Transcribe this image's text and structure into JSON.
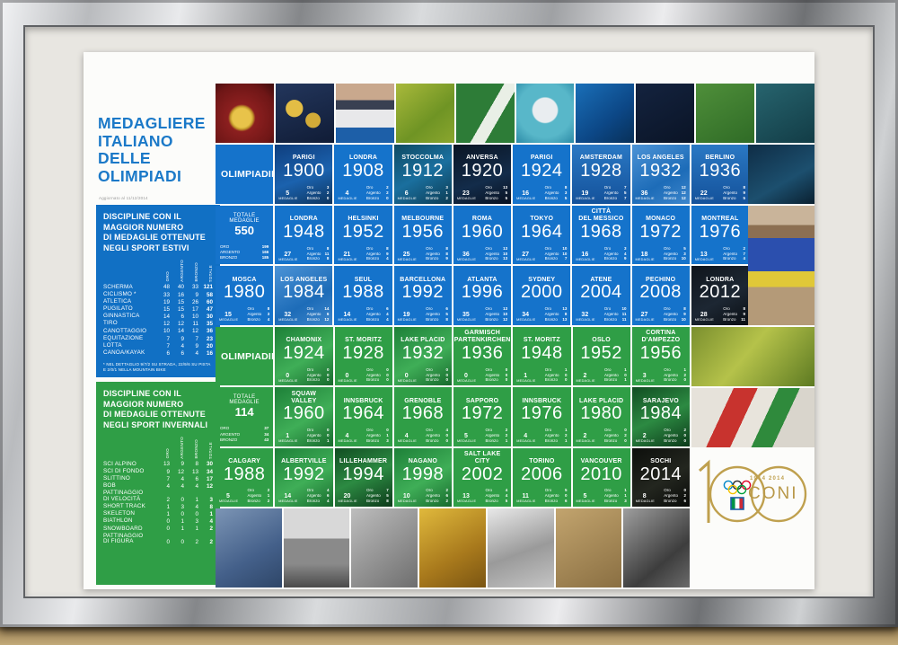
{
  "poster": {
    "title_lines": [
      "MEDAGLIERE",
      "ITALIANO",
      "DELLE",
      "OLIMPIADI"
    ],
    "updated_note": "Aggiornato al 11/12/2014",
    "labels": {
      "oro": "Oro",
      "argento": "Argento",
      "bronzo": "Bronzo",
      "medaglie": "MEDAGLIE",
      "totale_medaglie": "TOTALE MEDAGLIE",
      "col_oro": "ORO",
      "col_argento": "ARGENTO",
      "col_bronzo": "BRONZO",
      "col_totale": "TOTALE"
    },
    "colors": {
      "blue": "#1170c4",
      "green": "#2f9e46",
      "title_blue": "#1b79c8",
      "gold": "#bfa04e"
    },
    "summer_panel": {
      "heading_lines": [
        "DISCIPLINE CON IL",
        "MAGGIOR NUMERO",
        "DI MEDAGLIE OTTENUTE",
        "NEGLI SPORT ESTIVI"
      ],
      "columns": [
        "ORO",
        "ARGENTO",
        "BRONZO",
        "TOTALE"
      ],
      "rows": [
        [
          "SCHERMA",
          48,
          40,
          33,
          121
        ],
        [
          "CICLISMO *",
          33,
          16,
          9,
          58
        ],
        [
          "ATLETICA",
          19,
          15,
          26,
          60
        ],
        [
          "PUGILATO",
          15,
          15,
          17,
          47
        ],
        [
          "GINNASTICA",
          14,
          6,
          10,
          30
        ],
        [
          "TIRO",
          12,
          12,
          11,
          35
        ],
        [
          "CANOTTAGGIO",
          10,
          14,
          12,
          36
        ],
        [
          "EQUITAZIONE",
          7,
          9,
          7,
          23
        ],
        [
          "LOTTA",
          7,
          4,
          9,
          20
        ],
        [
          "CANOA/KAYAK",
          6,
          6,
          4,
          16
        ]
      ],
      "footnote": "* Nel dettaglio 9/7/2 su strada, 22/9/6 su pista e 2/0/1 nella mountain bike"
    },
    "winter_panel": {
      "heading_lines": [
        "DISCIPLINE CON IL",
        "MAGGIOR NUMERO",
        "DI MEDAGLIE OTTENUTE",
        "NEGLI SPORT INVERNALI"
      ],
      "columns": [
        "ORO",
        "ARGENTO",
        "BRONZO",
        "TOTALE"
      ],
      "rows": [
        [
          "SCI ALPINO",
          13,
          9,
          8,
          30
        ],
        [
          "SCI DI FONDO",
          9,
          12,
          13,
          34
        ],
        [
          "SLITTINO",
          7,
          4,
          6,
          17
        ],
        [
          "BOB",
          4,
          4,
          4,
          12
        ],
        [
          [
            "PATTINAGGIO",
            "DI VELOCITÀ"
          ],
          2,
          0,
          1,
          3
        ],
        [
          "SHORT TRACK",
          1,
          3,
          4,
          8
        ],
        [
          "SKELETON",
          1,
          0,
          0,
          1
        ],
        [
          "BIATHLON",
          0,
          1,
          3,
          4
        ],
        [
          "SNOWBOARD",
          0,
          1,
          1,
          2
        ],
        [
          [
            "PATTINAGGIO",
            "DI FIGURA"
          ],
          0,
          0,
          2,
          2
        ]
      ],
      "footnote": ""
    },
    "summer_games": {
      "rows": [
        [
          {
            "head": [
              "OLIMPIADI",
              "ESTIVE"
            ]
          },
          {
            "city": [
              "PARIGI"
            ],
            "year": "1900",
            "count": 5,
            "oro": 3,
            "argento": 2,
            "bronzo": 0,
            "variant": "photo-navy"
          },
          {
            "city": [
              "LONDRA"
            ],
            "year": "1908",
            "count": 4,
            "oro": 2,
            "argento": 2,
            "bronzo": 0
          },
          {
            "city": [
              "STOCCOLMA"
            ],
            "year": "1912",
            "count": 6,
            "oro": 3,
            "argento": 1,
            "bronzo": 2,
            "variant": "photo-teal"
          },
          {
            "city": [
              "ANVERSA"
            ],
            "year": "1920",
            "count": 23,
            "oro": 13,
            "argento": 5,
            "bronzo": 5,
            "variant": "photo-dark"
          },
          {
            "city": [
              "PARIGI"
            ],
            "year": "1924",
            "count": 16,
            "oro": 8,
            "argento": 3,
            "bronzo": 5
          },
          {
            "city": [
              "AMSTERDAM"
            ],
            "year": "1928",
            "count": 19,
            "oro": 7,
            "argento": 5,
            "bronzo": 7,
            "variant": "photo-crowd"
          },
          {
            "city": [
              "LOS ANGELES"
            ],
            "year": "1932",
            "count": 36,
            "oro": 12,
            "argento": 12,
            "bronzo": 12,
            "variant": "photo-light"
          },
          {
            "city": [
              "BERLINO"
            ],
            "year": "1936",
            "count": 22,
            "oro": 8,
            "argento": 9,
            "bronzo": 5,
            "variant": "photo-crowd"
          }
        ],
        [
          {
            "total": true,
            "value": 550,
            "oro": 199,
            "argento": 166,
            "bronzo": 185
          },
          {
            "city": [
              "LONDRA"
            ],
            "year": "1948",
            "count": 27,
            "oro": 8,
            "argento": 11,
            "bronzo": 8
          },
          {
            "city": [
              "HELSINKI"
            ],
            "year": "1952",
            "count": 21,
            "oro": 8,
            "argento": 9,
            "bronzo": 4
          },
          {
            "city": [
              "MELBOURNE"
            ],
            "year": "1956",
            "count": 25,
            "oro": 8,
            "argento": 8,
            "bronzo": 9
          },
          {
            "city": [
              "ROMA"
            ],
            "year": "1960",
            "count": 36,
            "oro": 13,
            "argento": 10,
            "bronzo": 13
          },
          {
            "city": [
              "TOKYO"
            ],
            "year": "1964",
            "count": 27,
            "oro": 10,
            "argento": 10,
            "bronzo": 7
          },
          {
            "city": [
              "CITTÀ",
              "DEL MESSICO"
            ],
            "year": "1968",
            "count": 16,
            "oro": 3,
            "argento": 4,
            "bronzo": 9
          },
          {
            "city": [
              "MONACO"
            ],
            "year": "1972",
            "count": 18,
            "oro": 5,
            "argento": 3,
            "bronzo": 10
          },
          {
            "city": [
              "MONTREAL"
            ],
            "year": "1976",
            "count": 13,
            "oro": 2,
            "argento": 7,
            "bronzo": 4
          }
        ],
        [
          {
            "city": [
              "MOSCA"
            ],
            "year": "1980",
            "count": 15,
            "oro": 8,
            "argento": 3,
            "bronzo": 4
          },
          {
            "city": [
              "LOS ANGELES"
            ],
            "year": "1984",
            "count": 32,
            "oro": 14,
            "argento": 6,
            "bronzo": 12,
            "variant": "photo-light"
          },
          {
            "city": [
              "SEUL"
            ],
            "year": "1988",
            "count": 14,
            "oro": 6,
            "argento": 4,
            "bronzo": 4
          },
          {
            "city": [
              "BARCELLONA"
            ],
            "year": "1992",
            "count": 19,
            "oro": 6,
            "argento": 5,
            "bronzo": 8
          },
          {
            "city": [
              "ATLANTA"
            ],
            "year": "1996",
            "count": 35,
            "oro": 13,
            "argento": 10,
            "bronzo": 12
          },
          {
            "city": [
              "SYDNEY"
            ],
            "year": "2000",
            "count": 34,
            "oro": 13,
            "argento": 8,
            "bronzo": 13
          },
          {
            "city": [
              "ATENE"
            ],
            "year": "2004",
            "count": 32,
            "oro": 10,
            "argento": 11,
            "bronzo": 11
          },
          {
            "city": [
              "PECHINO"
            ],
            "year": "2008",
            "count": 27,
            "oro": 8,
            "argento": 9,
            "bronzo": 10
          },
          {
            "city": [
              "LONDRA"
            ],
            "year": "2012",
            "count": 28,
            "oro": 8,
            "argento": 9,
            "bronzo": 11,
            "variant": "dark"
          }
        ]
      ]
    },
    "winter_games": {
      "rows": [
        [
          {
            "head": [
              "OLIMPIADI",
              "INVERNALI"
            ]
          },
          {
            "city": [
              "CHAMONIX"
            ],
            "year": "1924",
            "count": 0,
            "oro": 0,
            "argento": 0,
            "bronzo": 0,
            "variant": "g-photo"
          },
          {
            "city": [
              "ST. MORITZ"
            ],
            "year": "1928",
            "count": 0,
            "oro": 0,
            "argento": 0,
            "bronzo": 0
          },
          {
            "city": [
              "LAKE PLACID"
            ],
            "year": "1932",
            "count": 0,
            "oro": 0,
            "argento": 0,
            "bronzo": 0,
            "variant": "g-photo"
          },
          {
            "city": [
              "GARMISCH",
              "PARTENKIRCHEN"
            ],
            "year": "1936",
            "count": 0,
            "oro": 0,
            "argento": 0,
            "bronzo": 0
          },
          {
            "city": [
              "ST. MORITZ"
            ],
            "year": "1948",
            "count": 1,
            "oro": 1,
            "argento": 0,
            "bronzo": 0
          },
          {
            "city": [
              "OSLO"
            ],
            "year": "1952",
            "count": 2,
            "oro": 1,
            "argento": 0,
            "bronzo": 1
          },
          {
            "city": [
              "CORTINA",
              "D'AMPEZZO"
            ],
            "year": "1956",
            "count": 3,
            "oro": 1,
            "argento": 2,
            "bronzo": 0
          }
        ],
        [
          {
            "total": true,
            "value": 114,
            "oro": 37,
            "argento": 34,
            "bronzo": 43
          },
          {
            "city": [
              "SQUAW",
              "VALLEY"
            ],
            "year": "1960",
            "count": 1,
            "oro": 0,
            "argento": 0,
            "bronzo": 1,
            "variant": "g-photo"
          },
          {
            "city": [
              "INNSBRUCK"
            ],
            "year": "1964",
            "count": 4,
            "oro": 0,
            "argento": 1,
            "bronzo": 3
          },
          {
            "city": [
              "GRENOBLE"
            ],
            "year": "1968",
            "count": 4,
            "oro": 4,
            "argento": 0,
            "bronzo": 0
          },
          {
            "city": [
              "SAPPORO"
            ],
            "year": "1972",
            "count": 5,
            "oro": 2,
            "argento": 2,
            "bronzo": 1
          },
          {
            "city": [
              "INNSBRUCK"
            ],
            "year": "1976",
            "count": 4,
            "oro": 1,
            "argento": 2,
            "bronzo": 1
          },
          {
            "city": [
              "LAKE PLACID"
            ],
            "year": "1980",
            "count": 2,
            "oro": 0,
            "argento": 2,
            "bronzo": 0
          },
          {
            "city": [
              "SARAJEVO"
            ],
            "year": "1984",
            "count": 2,
            "oro": 2,
            "argento": 0,
            "bronzo": 0,
            "variant": "g-photo-dark"
          }
        ],
        [
          {
            "city": [
              "CALGARY"
            ],
            "year": "1988",
            "count": 5,
            "oro": 2,
            "argento": 1,
            "bronzo": 2
          },
          {
            "city": [
              "ALBERTVILLE"
            ],
            "year": "1992",
            "count": 14,
            "oro": 4,
            "argento": 6,
            "bronzo": 4,
            "variant": "g-photo"
          },
          {
            "city": [
              "LILLEHAMMER"
            ],
            "year": "1994",
            "count": 20,
            "oro": 7,
            "argento": 5,
            "bronzo": 8,
            "variant": "g-photo-dark"
          },
          {
            "city": [
              "NAGANO"
            ],
            "year": "1998",
            "count": 10,
            "oro": 2,
            "argento": 6,
            "bronzo": 2,
            "variant": "g-photo"
          },
          {
            "city": [
              "SALT LAKE",
              "CITY"
            ],
            "year": "2002",
            "count": 13,
            "oro": 4,
            "argento": 4,
            "bronzo": 5
          },
          {
            "city": [
              "TORINO"
            ],
            "year": "2006",
            "count": 11,
            "oro": 5,
            "argento": 0,
            "bronzo": 6
          },
          {
            "city": [
              "VANCOUVER"
            ],
            "year": "2010",
            "count": 5,
            "oro": 1,
            "argento": 1,
            "bronzo": 3
          },
          {
            "city": [
              "SOCHI"
            ],
            "year": "2014",
            "count": 8,
            "oro": 0,
            "argento": 2,
            "bronzo": 6,
            "variant": "dark2"
          }
        ]
      ]
    },
    "coni": {
      "years": "1914 2014",
      "name": "CONI"
    }
  }
}
